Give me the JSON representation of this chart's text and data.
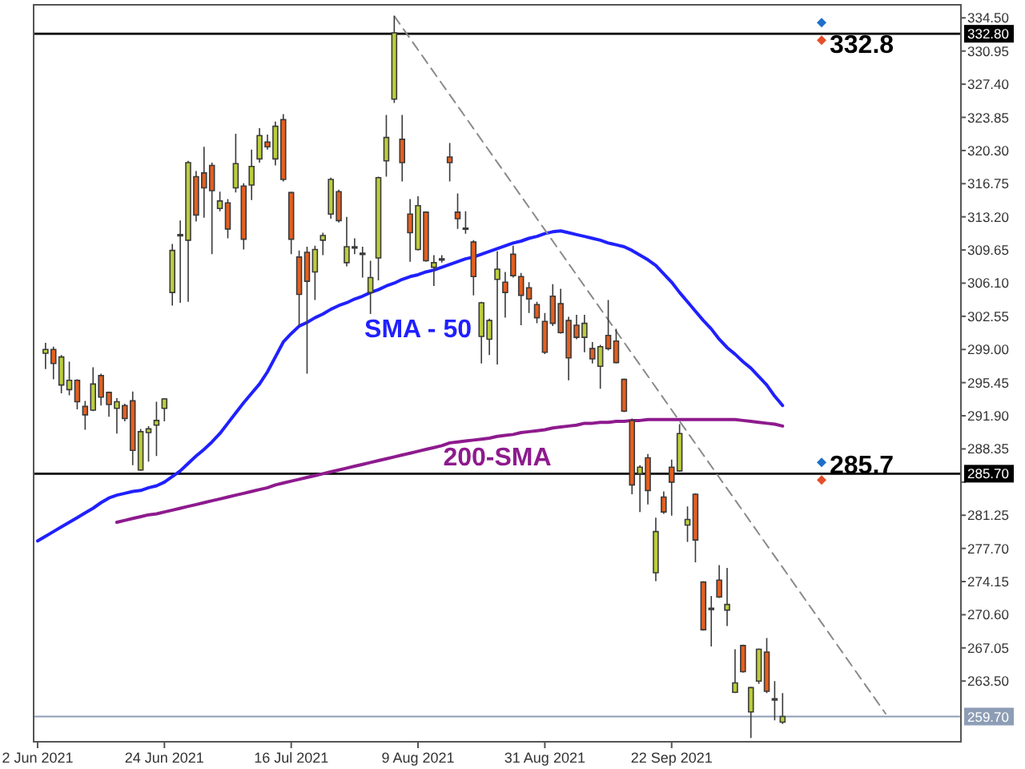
{
  "chart_data": {
    "type": "candlestick",
    "categories": [
      "2 Jun 2021",
      null,
      null,
      null,
      null,
      null,
      null,
      null,
      null,
      null,
      null,
      null,
      null,
      null,
      null,
      null,
      "24 Jun 2021",
      null,
      null,
      null,
      null,
      null,
      null,
      null,
      null,
      null,
      null,
      null,
      null,
      null,
      null,
      null,
      "16 Jul 2021",
      null,
      null,
      null,
      null,
      null,
      null,
      null,
      null,
      null,
      null,
      null,
      null,
      null,
      null,
      null,
      "9 Aug 2021",
      null,
      null,
      null,
      null,
      null,
      null,
      null,
      null,
      null,
      null,
      null,
      null,
      null,
      null,
      null,
      "31 Aug 2021",
      null,
      null,
      null,
      null,
      null,
      null,
      null,
      null,
      null,
      null,
      null,
      null,
      null,
      null,
      null,
      "22 Sep 2021",
      null,
      null,
      null,
      null,
      null,
      null,
      null,
      null,
      null,
      null,
      null,
      null,
      null,
      null,
      null,
      null,
      null,
      null,
      null,
      null,
      null,
      null,
      null,
      null,
      null,
      null,
      null,
      null,
      null,
      null,
      null,
      null,
      null,
      null,
      null,
      null
    ],
    "ohlc": [
      null,
      [
        298.6,
        299.7,
        296.9,
        299.0
      ],
      [
        299.0,
        299.3,
        295.8,
        297.5
      ],
      [
        295.2,
        298.4,
        294.3,
        298.2
      ],
      [
        294.7,
        297.7,
        294.1,
        295.7
      ],
      [
        295.7,
        295.8,
        292.6,
        293.4
      ],
      [
        292.9,
        293.5,
        290.4,
        292.0
      ],
      [
        292.5,
        297.1,
        292.4,
        295.3
      ],
      [
        296.2,
        296.4,
        293.0,
        293.9
      ],
      [
        294.4,
        294.5,
        291.8,
        293.1
      ],
      [
        292.7,
        293.8,
        290.0,
        293.4
      ],
      [
        293.0,
        293.2,
        291.3,
        291.6
      ],
      [
        293.5,
        294.5,
        286.6,
        288.2
      ],
      [
        286.1,
        290.5,
        286.0,
        290.2
      ],
      [
        290.1,
        290.8,
        287.0,
        290.5
      ],
      [
        290.9,
        293.4,
        287.6,
        291.4
      ],
      [
        292.7,
        293.8,
        291.3,
        293.7
      ],
      [
        305.1,
        310.3,
        303.7,
        309.6
      ],
      [
        311.2,
        312.8,
        304.0,
        311.3
      ],
      [
        310.7,
        319.2,
        304.1,
        319.0
      ],
      [
        317.5,
        318.1,
        312.7,
        313.4
      ],
      [
        317.9,
        320.7,
        313.1,
        316.3
      ],
      [
        318.7,
        319.0,
        309.2,
        316.0
      ],
      [
        314.1,
        315.9,
        313.8,
        314.9
      ],
      [
        314.7,
        315.1,
        310.9,
        311.9
      ],
      [
        316.3,
        322.1,
        315.8,
        318.9
      ],
      [
        316.5,
        316.8,
        309.7,
        310.8
      ],
      [
        316.6,
        320.4,
        315.0,
        318.6
      ],
      [
        319.4,
        322.7,
        319.0,
        321.9
      ],
      [
        321.2,
        322.0,
        320.4,
        320.7
      ],
      [
        319.4,
        323.4,
        318.7,
        322.9
      ],
      [
        323.6,
        324.2,
        317.0,
        317.2
      ],
      [
        315.8,
        315.9,
        309.2,
        310.8
      ],
      [
        308.9,
        309.6,
        301.5,
        304.9
      ],
      [
        309.4,
        310.0,
        296.4,
        306.3
      ],
      [
        307.3,
        310.1,
        304.3,
        309.7
      ],
      [
        310.7,
        311.5,
        309.1,
        311.2
      ],
      [
        313.5,
        317.4,
        313.0,
        317.2
      ],
      [
        315.9,
        316.1,
        312.6,
        312.8
      ],
      [
        308.3,
        313.2,
        307.9,
        310.0
      ],
      [
        309.9,
        310.9,
        309.2,
        310.0
      ],
      [
        309.3,
        310.0,
        306.7,
        309.2
      ],
      [
        305.1,
        308.5,
        302.8,
        306.7
      ],
      [
        308.8,
        317.5,
        306.4,
        317.4
      ],
      [
        319.2,
        324.1,
        317.5,
        321.7
      ],
      [
        325.8,
        334.7,
        325.4,
        332.9
      ],
      [
        321.5,
        324.1,
        317.0,
        319.0
      ],
      [
        313.5,
        315.1,
        308.4,
        311.5
      ],
      [
        309.7,
        315.4,
        309.6,
        314.4
      ],
      [
        313.7,
        313.8,
        308.4,
        308.5
      ],
      [
        307.8,
        309.1,
        305.8,
        308.3
      ],
      [
        308.6,
        309.1,
        308.3,
        308.7
      ],
      [
        319.6,
        321.1,
        317.0,
        319.0
      ],
      [
        313.7,
        315.7,
        311.9,
        313.0
      ],
      [
        312.0,
        313.8,
        311.4,
        311.9
      ],
      [
        310.5,
        310.7,
        304.8,
        306.8
      ],
      [
        300.4,
        304.1,
        297.5,
        304.0
      ],
      [
        300.1,
        302.3,
        298.4,
        302.1
      ],
      [
        306.5,
        309.5,
        297.4,
        307.6
      ],
      [
        306.2,
        307.3,
        302.4,
        305.1
      ],
      [
        309.2,
        310.1,
        306.7,
        306.9
      ],
      [
        306.8,
        307.2,
        301.6,
        304.8
      ],
      [
        305.6,
        306.2,
        302.9,
        304.4
      ],
      [
        303.8,
        304.1,
        301.8,
        302.4
      ],
      [
        302.0,
        302.9,
        298.5,
        298.7
      ],
      [
        304.7,
        306.0,
        301.5,
        301.8
      ],
      [
        303.9,
        305.5,
        300.7,
        300.8
      ],
      [
        302.1,
        302.5,
        295.7,
        298.1
      ],
      [
        301.6,
        302.7,
        300.1,
        300.3
      ],
      [
        300.3,
        302.7,
        298.7,
        301.8
      ],
      [
        299.1,
        299.8,
        297.5,
        298.0
      ],
      [
        297.2,
        299.5,
        294.8,
        299.3
      ],
      [
        300.5,
        304.3,
        298.9,
        299.1
      ],
      [
        299.9,
        301.2,
        297.5,
        297.6
      ],
      [
        295.8,
        295.9,
        292.3,
        292.4
      ],
      [
        291.4,
        291.6,
        283.5,
        284.5
      ],
      [
        285.7,
        286.6,
        281.6,
        286.4
      ],
      [
        287.4,
        287.8,
        282.4,
        283.9
      ],
      [
        275.1,
        281.0,
        274.2,
        279.5
      ],
      [
        283.2,
        283.8,
        281.4,
        281.6
      ],
      [
        286.4,
        287.2,
        281.2,
        284.8
      ],
      [
        286.0,
        291.0,
        285.9,
        290.0
      ],
      [
        280.2,
        282.2,
        278.4,
        280.8
      ],
      [
        283.5,
        283.6,
        276.2,
        278.6
      ],
      [
        274.1,
        274.2,
        268.9,
        269.0
      ],
      [
        271.3,
        272.6,
        267.2,
        271.2
      ],
      [
        274.3,
        275.9,
        272.4,
        272.5
      ],
      [
        271.1,
        275.6,
        269.4,
        271.7
      ],
      [
        262.3,
        266.9,
        262.2,
        263.3
      ],
      [
        267.3,
        267.4,
        264.4,
        264.5
      ],
      [
        260.2,
        262.9,
        257.4,
        262.8
      ],
      [
        263.5,
        267.0,
        263.2,
        266.9
      ],
      [
        266.6,
        268.1,
        262.2,
        262.4
      ],
      [
        261.6,
        263.5,
        259.3,
        261.5
      ],
      [
        259.1,
        262.2,
        258.9,
        259.7
      ],
      null,
      null,
      null,
      null,
      null,
      null,
      null,
      null,
      null,
      null,
      null,
      null,
      null,
      null,
      null,
      null,
      null,
      null,
      null,
      null,
      null,
      null
    ],
    "colors": [
      null,
      "#bccd3c",
      "#e55f1f",
      "#bccd3c",
      "#bccd3c",
      "#e55f1f",
      "#e55f1f",
      "#bccd3c",
      "#e55f1f",
      "#e55f1f",
      "#bccd3c",
      "#e55f1f",
      "#e55f1f",
      "#bccd3c",
      "#bccd3c",
      "#bccd3c",
      "#bccd3c",
      "#bccd3c",
      "#bccd3c",
      "#bccd3c",
      "#e55f1f",
      "#e55f1f",
      "#e55f1f",
      "#bccd3c",
      "#e55f1f",
      "#bccd3c",
      "#e55f1f",
      "#bccd3c",
      "#bccd3c",
      "#e55f1f",
      "#bccd3c",
      "#e55f1f",
      "#e55f1f",
      "#e55f1f",
      "#e55f1f",
      "#bccd3c",
      "#bccd3c",
      "#bccd3c",
      "#e55f1f",
      "#bccd3c",
      "#bccd3c",
      "#e55f1f",
      "#bccd3c",
      "#bccd3c",
      "#bccd3c",
      "#bccd3c",
      "#e55f1f",
      "#e55f1f",
      "#bccd3c",
      "#e55f1f",
      "#bccd3c",
      "#bccd3c",
      "#e55f1f",
      "#e55f1f",
      "#e55f1f",
      "#e55f1f",
      "#bccd3c",
      "#bccd3c",
      "#bccd3c",
      "#e55f1f",
      "#e55f1f",
      "#e55f1f",
      "#e55f1f",
      "#e55f1f",
      "#e55f1f",
      "#e55f1f",
      "#e55f1f",
      "#e55f1f",
      "#e55f1f",
      "#bccd3c",
      "#e55f1f",
      "#bccd3c",
      "#e55f1f",
      "#e55f1f",
      "#e55f1f",
      "#e55f1f",
      "#bccd3c",
      "#e55f1f",
      "#bccd3c",
      "#e55f1f",
      "#e55f1f",
      "#bccd3c",
      "#bccd3c",
      "#e55f1f",
      "#e55f1f",
      "#e55f1f",
      "#e55f1f",
      "#bccd3c",
      "#bccd3c",
      "#e55f1f",
      "#bccd3c",
      "#bccd3c",
      "#e55f1f",
      "#e55f1f",
      "#bccd3c",
      null,
      null,
      null,
      null,
      null,
      null,
      null,
      null,
      null,
      null,
      null,
      null,
      null,
      null,
      null,
      null,
      null,
      null,
      null,
      null,
      null,
      null
    ],
    "series": [
      {
        "name": "SMA - 50",
        "type": "line",
        "color": "#2020ff",
        "values": [
          278.5,
          279.0,
          279.5,
          280.0,
          280.5,
          281.0,
          281.5,
          282.0,
          282.6,
          283.1,
          283.4,
          283.6,
          283.8,
          283.9,
          284.2,
          284.4,
          284.8,
          285.4,
          286.0,
          286.8,
          287.6,
          288.3,
          289.1,
          290.0,
          291.1,
          292.2,
          293.3,
          294.3,
          295.3,
          296.6,
          298.2,
          299.8,
          300.7,
          301.5,
          301.9,
          302.4,
          302.8,
          303.3,
          303.7,
          304.0,
          304.4,
          304.7,
          305.1,
          305.4,
          305.8,
          306.1,
          306.5,
          306.8,
          307.0,
          307.3,
          307.5,
          307.8,
          308.1,
          308.4,
          308.7,
          308.9,
          309.2,
          309.5,
          309.8,
          310.1,
          310.4,
          310.6,
          310.9,
          311.1,
          311.4,
          311.6,
          311.7,
          311.5,
          311.3,
          311.1,
          310.9,
          310.7,
          310.4,
          310.2,
          310.0,
          309.6,
          309.1,
          308.6,
          308.0,
          307.1,
          306.2,
          305.1,
          304.1,
          303.1,
          302.1,
          301.2,
          300.1,
          299.2,
          298.5,
          297.7,
          297.0,
          296.1,
          295.2,
          294.0,
          293.0,
          null,
          null,
          null,
          null,
          null,
          null,
          null,
          null,
          null,
          null,
          null,
          null,
          null,
          null,
          null,
          null,
          null,
          null,
          null,
          null,
          null,
          null
        ]
      },
      {
        "name": "200-SMA",
        "type": "line",
        "color": "#8e1a8e",
        "values": [
          null,
          null,
          null,
          null,
          null,
          null,
          null,
          null,
          null,
          null,
          280.5,
          280.7,
          280.9,
          281.1,
          281.3,
          281.4,
          281.6,
          281.8,
          282.0,
          282.2,
          282.4,
          282.6,
          282.8,
          283.0,
          283.2,
          283.4,
          283.6,
          283.8,
          284.0,
          284.2,
          284.5,
          284.7,
          284.9,
          285.1,
          285.3,
          285.5,
          285.7,
          285.9,
          286.1,
          286.3,
          286.5,
          286.7,
          286.9,
          287.1,
          287.3,
          287.5,
          287.7,
          287.9,
          288.1,
          288.3,
          288.5,
          288.7,
          289.0,
          289.1,
          289.2,
          289.3,
          289.4,
          289.5,
          289.7,
          289.8,
          289.9,
          290.1,
          290.2,
          290.3,
          290.4,
          290.6,
          290.7,
          290.8,
          290.9,
          291.1,
          291.1,
          291.2,
          291.2,
          291.3,
          291.3,
          291.4,
          291.4,
          291.5,
          291.5,
          291.5,
          291.5,
          291.5,
          291.5,
          291.5,
          291.5,
          291.5,
          291.5,
          291.5,
          291.5,
          291.4,
          291.3,
          291.2,
          291.1,
          291.0,
          290.8,
          null,
          null,
          null,
          null,
          null,
          null,
          null,
          null,
          null,
          null,
          null,
          null,
          null,
          null,
          null,
          null,
          null,
          null,
          null,
          null,
          null,
          null
        ]
      },
      {
        "type": "line",
        "color": "#8a8a8a",
        "line_style": "dashed",
        "values": [
          null,
          null,
          null,
          null,
          null,
          null,
          null,
          null,
          null,
          null,
          null,
          null,
          null,
          null,
          null,
          null,
          null,
          null,
          null,
          null,
          null,
          null,
          null,
          null,
          null,
          null,
          null,
          null,
          null,
          null,
          null,
          null,
          null,
          null,
          null,
          null,
          null,
          null,
          null,
          null,
          null,
          null,
          null,
          null,
          null,
          334.7,
          null,
          null,
          null,
          null,
          null,
          null,
          null,
          null,
          null,
          null,
          null,
          null,
          null,
          null,
          null,
          null,
          null,
          null,
          null,
          null,
          null,
          null,
          null,
          null,
          null,
          null,
          null,
          null,
          null,
          null,
          null,
          null,
          null,
          null,
          null,
          null,
          null,
          null,
          null,
          null,
          null,
          null,
          null,
          null,
          null,
          null,
          null,
          null,
          null,
          null,
          null,
          null,
          null,
          null,
          null,
          null,
          null,
          null,
          null,
          null,
          null,
          260.0,
          null,
          null,
          null,
          null,
          null,
          null,
          null,
          null,
          null
        ]
      }
    ],
    "ylim": [
      257.0,
      335.9
    ],
    "yticks": [
      {
        "value": 334.5,
        "label": "334.50"
      },
      {
        "value": 330.95,
        "label": "330.95"
      },
      {
        "value": 327.4,
        "label": "327.40"
      },
      {
        "value": 323.85,
        "label": "323.85"
      },
      {
        "value": 320.3,
        "label": "320.30"
      },
      {
        "value": 316.75,
        "label": "316.75"
      },
      {
        "value": 313.2,
        "label": "313.20"
      },
      {
        "value": 309.65,
        "label": "309.65"
      },
      {
        "value": 306.1,
        "label": "306.10"
      },
      {
        "value": 302.55,
        "label": "302.55"
      },
      {
        "value": 299,
        "label": "299.00"
      },
      {
        "value": 295.45,
        "label": "295.45"
      },
      {
        "value": 291.9,
        "label": "291.90"
      },
      {
        "value": 288.35,
        "label": "288.35"
      },
      {
        "value": 284.8,
        "label": null
      },
      {
        "value": 281.25,
        "label": "281.25"
      },
      {
        "value": 277.7,
        "label": "277.70"
      },
      {
        "value": 274.15,
        "label": "274.15"
      },
      {
        "value": 270.6,
        "label": "270.60"
      },
      {
        "value": 267.05,
        "label": "267.05"
      },
      {
        "value": 263.5,
        "label": "263.50"
      }
    ],
    "ref_lines": [
      {
        "axis": "y",
        "value": 332.8,
        "label": "332.80",
        "color": "#000000"
      },
      {
        "axis": "y",
        "value": 285.7,
        "label": "285.70",
        "color": "#000000"
      },
      {
        "axis": "y",
        "value": 259.7,
        "label": "259.70",
        "color": "#8d9db5"
      }
    ],
    "annotations": [
      {
        "text": "332.8",
        "y": 332.8
      },
      {
        "text": "285.7",
        "y": 285.7
      }
    ]
  }
}
